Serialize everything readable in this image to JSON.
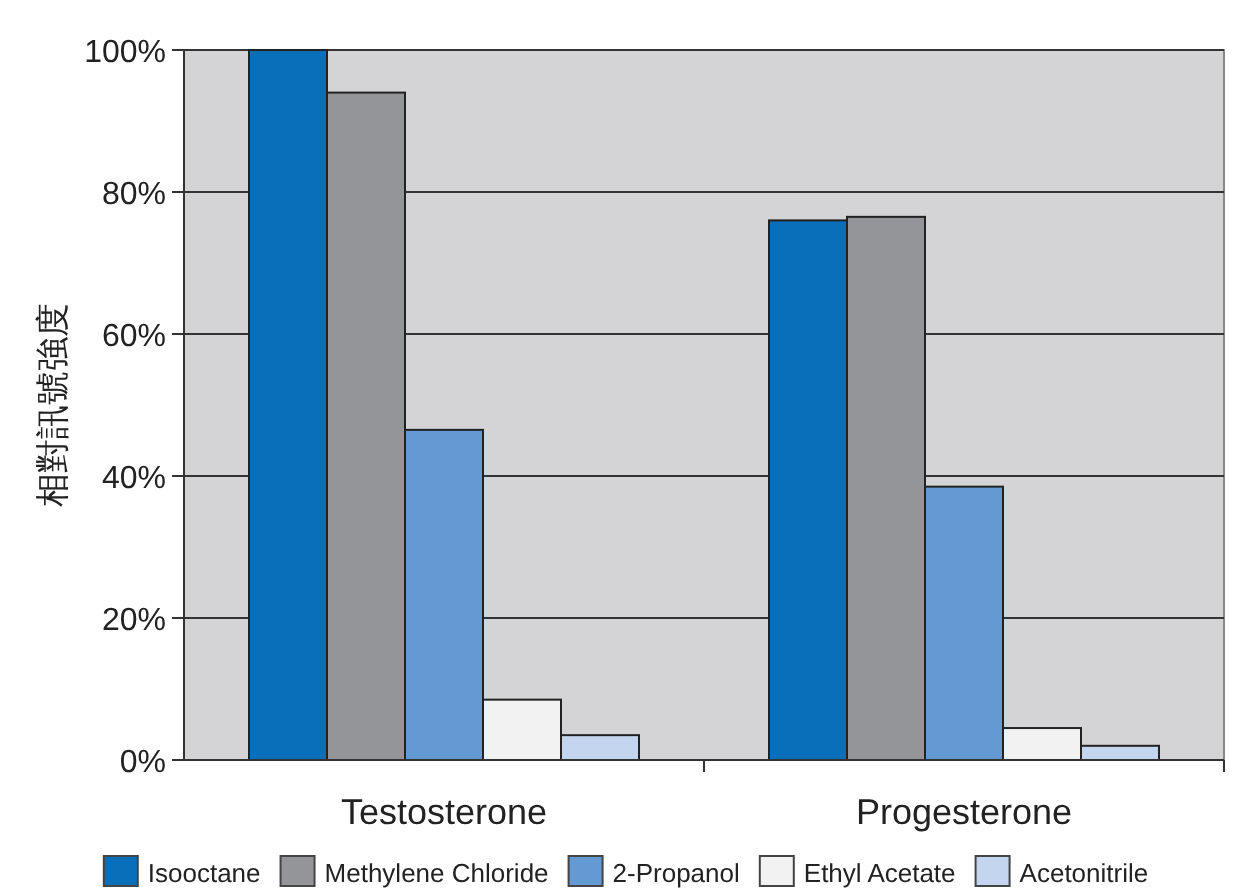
{
  "chart_data": {
    "type": "bar",
    "ylabel": "相對訊號強度",
    "categories": [
      "Testosterone",
      "Progesterone"
    ],
    "series": [
      {
        "name": "Isooctane",
        "color": "#0a6fba",
        "values": [
          100,
          76
        ]
      },
      {
        "name": "Methylene Chloride",
        "color": "#939598",
        "values": [
          94,
          76.5
        ]
      },
      {
        "name": "2-Propanol",
        "color": "#649ad3",
        "values": [
          46.5,
          38.5
        ]
      },
      {
        "name": "Ethyl Acetate",
        "color": "#f2f2f2",
        "values": [
          8.5,
          4.5
        ]
      },
      {
        "name": "Acetonitrile",
        "color": "#c4d6ef",
        "values": [
          3.5,
          2
        ]
      }
    ],
    "ylim": [
      0,
      100
    ],
    "yticks": [
      {
        "value": 0,
        "label": "0%"
      },
      {
        "value": 20,
        "label": "20%"
      },
      {
        "value": 40,
        "label": "40%"
      },
      {
        "value": 60,
        "label": "60%"
      },
      {
        "value": 80,
        "label": "80%"
      },
      {
        "value": 100,
        "label": "100%"
      }
    ],
    "grid": "y",
    "legend": "bottom"
  }
}
